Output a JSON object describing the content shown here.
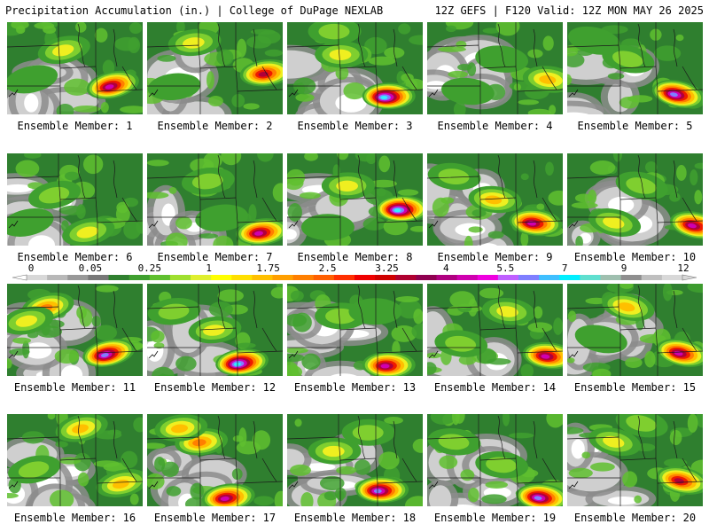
{
  "header": {
    "left": "Precipitation Accumulation (in.) | College of DuPage NEXLAB",
    "right": "12Z GEFS | F120 Valid: 12Z MON MAY 26 2025"
  },
  "members": [
    {
      "label": "Ensemble Member: 1",
      "cores": [
        [
          0.78,
          0.68,
          0.9
        ],
        [
          0.42,
          0.3,
          0.55
        ],
        [
          0.18,
          0.62,
          0.35
        ]
      ]
    },
    {
      "label": "Ensemble Member: 2",
      "cores": [
        [
          0.88,
          0.55,
          0.85
        ],
        [
          0.35,
          0.22,
          0.5
        ],
        [
          0.2,
          0.7,
          0.3
        ]
      ]
    },
    {
      "label": "Ensemble Member: 3",
      "cores": [
        [
          0.75,
          0.8,
          1.0
        ],
        [
          0.4,
          0.35,
          0.5
        ],
        [
          0.35,
          0.1,
          0.4
        ]
      ]
    },
    {
      "label": "Ensemble Member: 4",
      "cores": [
        [
          0.9,
          0.62,
          0.6
        ],
        [
          0.3,
          0.75,
          0.35
        ],
        [
          0.55,
          0.4,
          0.35
        ]
      ]
    },
    {
      "label": "Ensemble Member: 5",
      "cores": [
        [
          0.82,
          0.78,
          0.95
        ],
        [
          0.45,
          0.4,
          0.4
        ],
        [
          0.2,
          0.2,
          0.3
        ]
      ]
    },
    {
      "label": "Ensemble Member: 6",
      "cores": [
        [
          0.6,
          0.85,
          0.55
        ],
        [
          0.35,
          0.45,
          0.45
        ],
        [
          0.15,
          0.75,
          0.3
        ]
      ]
    },
    {
      "label": "Ensemble Member: 7",
      "cores": [
        [
          0.85,
          0.85,
          0.9
        ],
        [
          0.45,
          0.3,
          0.4
        ],
        [
          0.55,
          0.7,
          0.35
        ]
      ]
    },
    {
      "label": "Ensemble Member: 8",
      "cores": [
        [
          0.85,
          0.6,
          1.0
        ],
        [
          0.45,
          0.35,
          0.5
        ],
        [
          0.3,
          0.8,
          0.35
        ]
      ]
    },
    {
      "label": "Ensemble Member: 9",
      "cores": [
        [
          0.8,
          0.75,
          0.92
        ],
        [
          0.5,
          0.5,
          0.6
        ],
        [
          0.2,
          0.25,
          0.4
        ]
      ]
    },
    {
      "label": "Ensemble Member: 10",
      "cores": [
        [
          0.95,
          0.78,
          0.9
        ],
        [
          0.35,
          0.75,
          0.5
        ],
        [
          0.55,
          0.35,
          0.4
        ]
      ]
    },
    {
      "label": "Ensemble Member: 11",
      "cores": [
        [
          0.75,
          0.75,
          0.95
        ],
        [
          0.3,
          0.25,
          0.65
        ],
        [
          0.15,
          0.4,
          0.55
        ]
      ]
    },
    {
      "label": "Ensemble Member: 12",
      "cores": [
        [
          0.7,
          0.85,
          1.0
        ],
        [
          0.5,
          0.5,
          0.55
        ],
        [
          0.2,
          0.3,
          0.4
        ]
      ]
    },
    {
      "label": "Ensemble Member: 13",
      "cores": [
        [
          0.75,
          0.88,
          0.9
        ],
        [
          0.4,
          0.35,
          0.45
        ],
        [
          0.65,
          0.3,
          0.35
        ]
      ]
    },
    {
      "label": "Ensemble Member: 14",
      "cores": [
        [
          0.9,
          0.78,
          0.88
        ],
        [
          0.6,
          0.3,
          0.5
        ],
        [
          0.25,
          0.65,
          0.4
        ]
      ]
    },
    {
      "label": "Ensemble Member: 15",
      "cores": [
        [
          0.85,
          0.75,
          0.88
        ],
        [
          0.45,
          0.25,
          0.6
        ],
        [
          0.25,
          0.6,
          0.35
        ]
      ]
    },
    {
      "label": "Ensemble Member: 16",
      "cores": [
        [
          0.55,
          0.15,
          0.6
        ],
        [
          0.85,
          0.75,
          0.6
        ],
        [
          0.2,
          0.6,
          0.4
        ]
      ]
    },
    {
      "label": "Ensemble Member: 17",
      "cores": [
        [
          0.6,
          0.9,
          0.9
        ],
        [
          0.4,
          0.3,
          0.65
        ],
        [
          0.25,
          0.15,
          0.6
        ]
      ]
    },
    {
      "label": "Ensemble Member: 18",
      "cores": [
        [
          0.7,
          0.82,
          0.95
        ],
        [
          0.35,
          0.4,
          0.5
        ],
        [
          0.6,
          0.2,
          0.4
        ]
      ]
    },
    {
      "label": "Ensemble Member: 19",
      "cores": [
        [
          0.85,
          0.9,
          0.95
        ],
        [
          0.55,
          0.55,
          0.45
        ],
        [
          0.2,
          0.3,
          0.4
        ]
      ]
    },
    {
      "label": "Ensemble Member: 20",
      "cores": [
        [
          0.85,
          0.72,
          0.8
        ],
        [
          0.35,
          0.3,
          0.55
        ],
        [
          0.55,
          0.1,
          0.4
        ]
      ]
    }
  ],
  "colorbar": {
    "tick_labels": [
      "0",
      "0.05",
      "0.25",
      "1",
      "1.75",
      "2.5",
      "3.25",
      "4",
      "5.5",
      "7",
      "9",
      "12"
    ],
    "colors": [
      "#d8d8d8",
      "#b8b8b8",
      "#989898",
      "#787878",
      "#2f7f2f",
      "#3f9f2f",
      "#5fbf2f",
      "#9fdf2f",
      "#dfef2f",
      "#ffff00",
      "#ffdf00",
      "#ffbf00",
      "#ff9f00",
      "#ff7f00",
      "#ff5f00",
      "#ff2f00",
      "#ef0000",
      "#cf0000",
      "#af0030",
      "#8f0050",
      "#af0080",
      "#cf00af",
      "#ef00df",
      "#bf5fff",
      "#7f7fff",
      "#3fbfff",
      "#00efff",
      "#5fdfcf",
      "#9fbfaf",
      "#8f8f8f",
      "#bfbfbf",
      "#d8d8d8"
    ]
  }
}
